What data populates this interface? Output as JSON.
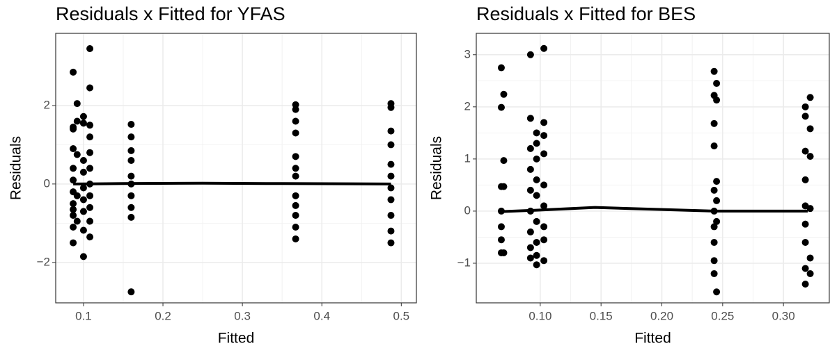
{
  "chart_data": [
    {
      "type": "scatter",
      "title": "Residuals x Fitted for YFAS",
      "x_label": "Fitted",
      "y_label": "Residuals",
      "xlim": [
        0.065,
        0.519
      ],
      "ylim": [
        -3.03,
        3.84
      ],
      "xticks": [
        0.1,
        0.2,
        0.3,
        0.4,
        0.5
      ],
      "yticks": [
        {
          "value": -2,
          "label": "−2"
        },
        0,
        2
      ],
      "grid": true,
      "color": "#000000",
      "points": {
        "x": [
          0.087,
          0.087,
          0.087,
          0.087,
          0.087,
          0.087,
          0.087,
          0.087,
          0.087,
          0.087,
          0.087,
          0.087,
          0.092,
          0.092,
          0.092,
          0.092,
          0.092,
          0.1,
          0.1,
          0.1,
          0.1,
          0.1,
          0.1,
          0.1,
          0.1,
          0.1,
          0.108,
          0.108,
          0.108,
          0.108,
          0.108,
          0.108,
          0.108,
          0.108,
          0.108,
          0.108,
          0.108,
          0.16,
          0.16,
          0.16,
          0.16,
          0.16,
          0.16,
          0.16,
          0.16,
          0.16,
          0.16,
          0.367,
          0.367,
          0.367,
          0.367,
          0.367,
          0.367,
          0.367,
          0.367,
          0.367,
          0.367,
          0.367,
          0.367,
          0.487,
          0.487,
          0.487,
          0.487,
          0.487,
          0.487,
          0.487,
          0.487,
          0.487,
          0.487,
          0.487
        ],
        "y": [
          2.85,
          1.4,
          0.9,
          0.4,
          0.1,
          -0.2,
          -0.5,
          -0.8,
          -1.1,
          -1.5,
          1.45,
          -0.65,
          2.05,
          1.6,
          0.75,
          -0.3,
          -0.95,
          1.72,
          1.55,
          0.6,
          0.3,
          -0.1,
          -0.4,
          -0.7,
          -1.18,
          -1.85,
          3.45,
          2.45,
          1.5,
          1.2,
          0.8,
          0.4,
          0,
          -0.3,
          -0.6,
          -0.95,
          -1.35,
          1.52,
          1.2,
          0.85,
          0.6,
          0.2,
          0,
          -0.3,
          -0.6,
          -0.85,
          -2.75,
          2.02,
          1.9,
          1.6,
          1.3,
          0.7,
          0.4,
          0.2,
          -0.3,
          -0.55,
          -0.8,
          -1.1,
          -1.4,
          2.05,
          1.95,
          1.35,
          1.0,
          0.5,
          0.2,
          -0.1,
          -0.4,
          -0.8,
          -1.2,
          -1.5
        ]
      },
      "smooth": {
        "x": [
          0.087,
          0.15,
          0.25,
          0.35,
          0.487
        ],
        "y": [
          0,
          0.01,
          0.02,
          0.01,
          0
        ]
      }
    },
    {
      "type": "scatter",
      "title": "Residuals x Fitted for BES",
      "x_label": "Fitted",
      "y_label": "Residuals",
      "xlim": [
        0.0474,
        0.3377
      ],
      "ylim": [
        -1.76,
        3.41
      ],
      "xticks": [
        {
          "value": 0.1,
          "label": "0.10"
        },
        0.15,
        {
          "value": 0.2,
          "label": "0.20"
        },
        0.25,
        {
          "value": 0.3,
          "label": "0.30"
        }
      ],
      "yticks": [
        {
          "value": -1,
          "label": "−1"
        },
        0,
        1,
        2,
        3
      ],
      "grid": true,
      "color": "#000000",
      "points": {
        "x": [
          0.068,
          0.068,
          0.068,
          0.068,
          0.068,
          0.068,
          0.068,
          0.07,
          0.07,
          0.07,
          0.07,
          0.092,
          0.092,
          0.092,
          0.092,
          0.092,
          0.092,
          0.092,
          0.092,
          0.092,
          0.097,
          0.097,
          0.097,
          0.097,
          0.097,
          0.097,
          0.097,
          0.097,
          0.097,
          0.103,
          0.103,
          0.103,
          0.103,
          0.103,
          0.103,
          0.103,
          0.103,
          0.103,
          0.243,
          0.243,
          0.243,
          0.243,
          0.243,
          0.243,
          0.243,
          0.243,
          0.243,
          0.243,
          0.245,
          0.245,
          0.245,
          0.245,
          0.245,
          0.245,
          0.318,
          0.318,
          0.318,
          0.318,
          0.318,
          0.318,
          0.318,
          0.318,
          0.318,
          0.322,
          0.322,
          0.322,
          0.322,
          0.322,
          0.322
        ],
        "y": [
          2.75,
          1.99,
          0.47,
          0,
          -0.3,
          -0.55,
          -0.8,
          2.24,
          0.97,
          0.47,
          -0.8,
          3.0,
          1.78,
          1.2,
          0.8,
          0.4,
          0,
          -0.4,
          -0.7,
          -0.9,
          1.5,
          1.3,
          1.0,
          0.6,
          0.3,
          -0.2,
          -0.6,
          -0.85,
          -1.03,
          3.12,
          1.7,
          1.45,
          1.1,
          0.5,
          0.1,
          -0.3,
          -0.55,
          -0.95,
          2.68,
          2.22,
          1.68,
          1.25,
          0.4,
          0,
          -0.3,
          -0.6,
          -0.95,
          -1.2,
          2.45,
          2.13,
          0.57,
          0.2,
          -0.2,
          -1.55,
          2.0,
          1.82,
          1.15,
          0.6,
          0.1,
          -0.25,
          -0.6,
          -1.1,
          -1.4,
          2.18,
          1.58,
          1.05,
          0.05,
          -0.9,
          -1.2
        ]
      },
      "smooth": {
        "x": [
          0.068,
          0.1,
          0.145,
          0.2,
          0.244,
          0.32
        ],
        "y": [
          -0.01,
          0.02,
          0.07,
          0.03,
          0,
          0
        ]
      }
    }
  ]
}
